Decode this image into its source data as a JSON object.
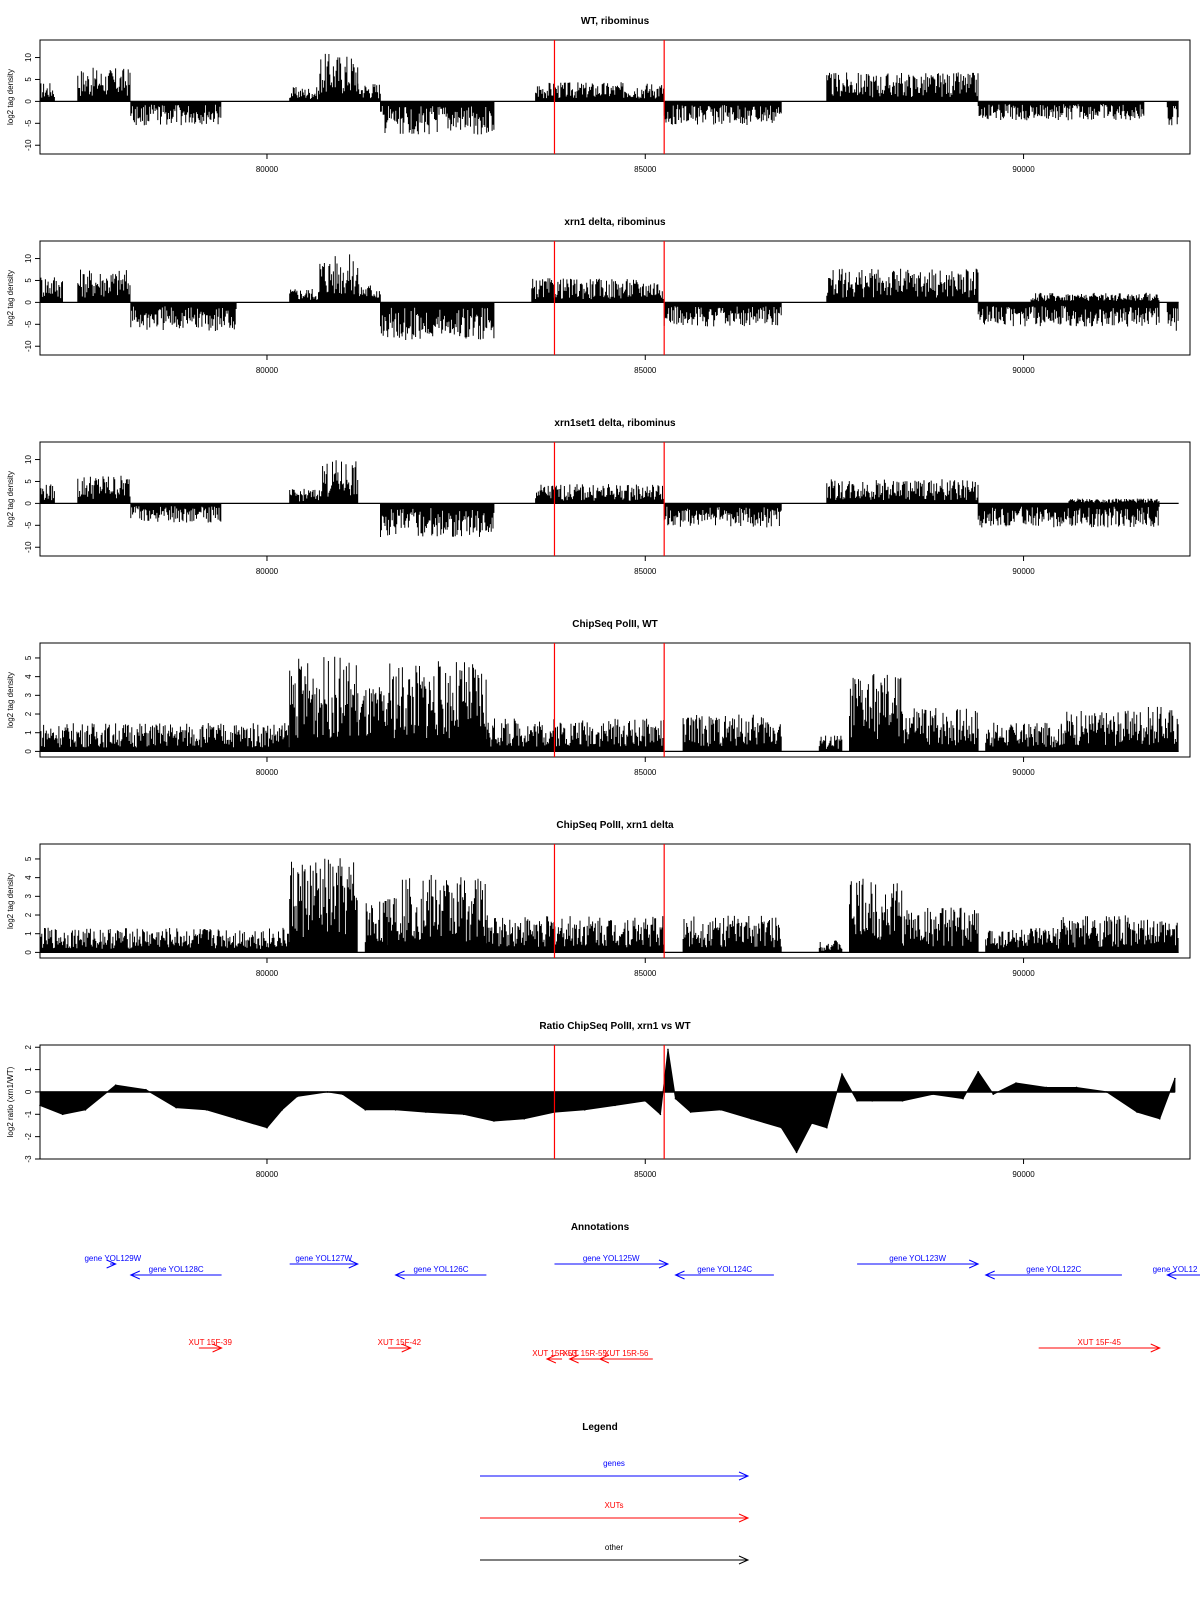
{
  "chart_data": [
    {
      "type": "area",
      "title": "WT, ribominus",
      "xlabel": "",
      "ylabel": "log2 tag density",
      "xlim": [
        77000,
        92200
      ],
      "ylim": [
        -12,
        14
      ],
      "x_ticks": [
        80000,
        85000,
        90000
      ],
      "y_ticks": [
        -10,
        -5,
        0,
        5,
        10
      ],
      "x_tick_labels": [
        "80000",
        "85000",
        "90000"
      ],
      "y_tick_labels": [
        "-10",
        "-5",
        "0",
        "5",
        "10"
      ],
      "grid": false,
      "markers": [
        83800,
        85250
      ],
      "series": [
        {
          "segments": [
            [
              77000,
              77200,
              4,
              0
            ],
            [
              77500,
              78200,
              7,
              0
            ],
            [
              78200,
              79400,
              0,
              -5
            ],
            [
              80300,
              80700,
              3,
              0
            ],
            [
              80700,
              81200,
              10,
              0
            ],
            [
              81200,
              81500,
              4,
              0
            ],
            [
              81500,
              83000,
              0,
              -7
            ],
            [
              83550,
              85250,
              4,
              0
            ],
            [
              85250,
              86800,
              0,
              -5
            ],
            [
              87400,
              89400,
              6,
              0
            ],
            [
              89400,
              91600,
              0,
              -4
            ],
            [
              91900,
              92050,
              0,
              -5
            ]
          ]
        }
      ]
    },
    {
      "type": "area",
      "title": "xrn1 delta, ribominus",
      "xlabel": "",
      "ylabel": "log2 tag density",
      "xlim": [
        77000,
        92200
      ],
      "ylim": [
        -12,
        14
      ],
      "x_ticks": [
        80000,
        85000,
        90000
      ],
      "y_ticks": [
        -10,
        -5,
        0,
        5,
        10
      ],
      "x_tick_labels": [
        "80000",
        "85000",
        "90000"
      ],
      "y_tick_labels": [
        "-10",
        "-5",
        "0",
        "5",
        "10"
      ],
      "grid": false,
      "markers": [
        83800,
        85250
      ],
      "series": [
        {
          "segments": [
            [
              77000,
              77300,
              6,
              0
            ],
            [
              77500,
              78200,
              7,
              0
            ],
            [
              78200,
              79600,
              0,
              -6
            ],
            [
              80300,
              80700,
              3,
              0
            ],
            [
              80700,
              81200,
              10,
              0
            ],
            [
              81200,
              81500,
              4,
              0
            ],
            [
              81500,
              83000,
              0,
              -8
            ],
            [
              83500,
              85250,
              5,
              0
            ],
            [
              85250,
              86800,
              0,
              -5
            ],
            [
              87400,
              89400,
              7,
              0
            ],
            [
              89400,
              91800,
              0,
              -5
            ],
            [
              90100,
              91800,
              2,
              0
            ],
            [
              91900,
              92050,
              0,
              -6
            ]
          ]
        }
      ]
    },
    {
      "type": "area",
      "title": "xrn1set1 delta, ribominus",
      "xlabel": "",
      "ylabel": "log2 tag density",
      "xlim": [
        77000,
        92200
      ],
      "ylim": [
        -12,
        14
      ],
      "x_ticks": [
        80000,
        85000,
        90000
      ],
      "y_ticks": [
        -10,
        -5,
        0,
        5,
        10
      ],
      "x_tick_labels": [
        "80000",
        "85000",
        "90000"
      ],
      "y_tick_labels": [
        "-10",
        "-5",
        "0",
        "5",
        "10"
      ],
      "grid": false,
      "markers": [
        83800,
        85250
      ],
      "series": [
        {
          "segments": [
            [
              77000,
              77200,
              4,
              0
            ],
            [
              77500,
              78200,
              6,
              0
            ],
            [
              78200,
              79400,
              0,
              -4
            ],
            [
              80300,
              80700,
              3,
              0
            ],
            [
              80700,
              81200,
              9,
              0
            ],
            [
              81500,
              83000,
              0,
              -7
            ],
            [
              83550,
              85250,
              4,
              0
            ],
            [
              85250,
              86800,
              0,
              -5
            ],
            [
              87400,
              89400,
              5,
              0
            ],
            [
              89400,
              91800,
              0,
              -5
            ],
            [
              90600,
              91800,
              1,
              0
            ]
          ]
        }
      ]
    },
    {
      "type": "area",
      "title": "ChipSeq PolII, WT",
      "xlabel": "",
      "ylabel": "log2 tag density",
      "xlim": [
        77000,
        92200
      ],
      "ylim": [
        -0.3,
        5.8
      ],
      "x_ticks": [
        80000,
        85000,
        90000
      ],
      "y_ticks": [
        0,
        1,
        2,
        3,
        4,
        5
      ],
      "x_tick_labels": [
        "80000",
        "85000",
        "90000"
      ],
      "y_tick_labels": [
        "0",
        "1",
        "2",
        "3",
        "4",
        "5"
      ],
      "grid": false,
      "markers": [
        83800,
        85250
      ],
      "series": [
        {
          "segments": [
            [
              77000,
              80300,
              1.4,
              0
            ],
            [
              80300,
              81200,
              4.6,
              0
            ],
            [
              81200,
              81600,
              3.2,
              0
            ],
            [
              81600,
              82900,
              4.4,
              0
            ],
            [
              82900,
              85250,
              1.6,
              0
            ],
            [
              85500,
              86800,
              1.8,
              0
            ],
            [
              87300,
              87600,
              0.8,
              0
            ],
            [
              87700,
              88400,
              3.8,
              0
            ],
            [
              88400,
              89400,
              2.2,
              0
            ],
            [
              89500,
              90500,
              1.4,
              0
            ],
            [
              90500,
              91400,
              2.0,
              0
            ],
            [
              91400,
              92050,
              2.2,
              0
            ]
          ]
        }
      ]
    },
    {
      "type": "area",
      "title": "ChipSeq PolII, xrn1 delta",
      "xlabel": "",
      "ylabel": "log2 tag density",
      "xlim": [
        77000,
        92200
      ],
      "ylim": [
        -0.3,
        5.8
      ],
      "x_ticks": [
        80000,
        85000,
        90000
      ],
      "y_ticks": [
        0,
        1,
        2,
        3,
        4,
        5
      ],
      "x_tick_labels": [
        "80000",
        "85000",
        "90000"
      ],
      "y_tick_labels": [
        "0",
        "1",
        "2",
        "3",
        "4",
        "5"
      ],
      "grid": false,
      "markers": [
        83800,
        85250
      ],
      "series": [
        {
          "segments": [
            [
              77000,
              80300,
              1.2,
              0
            ],
            [
              80300,
              81200,
              4.6,
              0
            ],
            [
              81300,
              81600,
              2.6,
              0
            ],
            [
              81600,
              82900,
              3.8,
              0
            ],
            [
              82900,
              85250,
              1.8,
              0
            ],
            [
              85500,
              86800,
              1.8,
              0
            ],
            [
              87300,
              87600,
              0.6,
              0
            ],
            [
              87700,
              88400,
              3.6,
              0
            ],
            [
              88400,
              89400,
              2.2,
              0
            ],
            [
              89500,
              90500,
              1.2,
              0
            ],
            [
              90500,
              91400,
              1.8,
              0
            ],
            [
              91400,
              92050,
              1.6,
              0
            ]
          ]
        }
      ]
    },
    {
      "type": "area",
      "title": "Ratio ChipSeq PolII, xrn1 vs WT",
      "xlabel": "",
      "ylabel": "log2 ratio (xrn1/WT)",
      "xlim": [
        77000,
        92200
      ],
      "ylim": [
        -3,
        2.1
      ],
      "x_ticks": [
        80000,
        85000,
        90000
      ],
      "y_ticks": [
        -3,
        -2,
        -1,
        0,
        1,
        2
      ],
      "x_tick_labels": [
        "80000",
        "85000",
        "90000"
      ],
      "y_tick_labels": [
        "-3",
        "-2",
        "-1",
        "0",
        "1",
        "2"
      ],
      "grid": false,
      "markers": [
        83800,
        85250
      ],
      "series": [
        {
          "x": [
            77000,
            77300,
            77600,
            78000,
            78400,
            78800,
            79200,
            79600,
            80000,
            80200,
            80400,
            80800,
            81000,
            81300,
            81700,
            82100,
            82600,
            83000,
            83400,
            83800,
            84200,
            84600,
            85000,
            85200,
            85300,
            85400,
            85600,
            86000,
            86400,
            86800,
            87000,
            87200,
            87400,
            87600,
            87800,
            88000,
            88400,
            88800,
            89200,
            89400,
            89600,
            89900,
            90300,
            90700,
            91100,
            91500,
            91800,
            92000
          ],
          "y": [
            -0.6,
            -1.0,
            -0.8,
            0.3,
            0.1,
            -0.7,
            -0.8,
            -1.2,
            -1.6,
            -0.8,
            -0.2,
            0.0,
            -0.1,
            -0.8,
            -0.8,
            -0.9,
            -1.0,
            -1.3,
            -1.2,
            -0.9,
            -0.8,
            -0.6,
            -0.4,
            -1.0,
            1.9,
            -0.3,
            -0.9,
            -0.8,
            -1.2,
            -1.6,
            -2.7,
            -1.4,
            -1.6,
            0.8,
            -0.4,
            -0.4,
            -0.4,
            -0.1,
            -0.3,
            0.9,
            -0.1,
            0.4,
            0.2,
            0.2,
            0.0,
            -0.9,
            -1.2,
            0.6
          ]
        }
      ]
    }
  ],
  "annotations": {
    "title": "Annotations",
    "genes": [
      {
        "label": "gene YOL129W",
        "dir": "right",
        "x1": 77700,
        "x2": 78000
      },
      {
        "label": "gene YOL128C",
        "dir": "left",
        "x1": 78200,
        "x2": 79400
      },
      {
        "label": "gene YOL127W",
        "dir": "right",
        "x1": 80300,
        "x2": 81200
      },
      {
        "label": "gene YOL126C",
        "dir": "left",
        "x1": 81700,
        "x2": 82900
      },
      {
        "label": "gene YOL125W",
        "dir": "right",
        "x1": 83800,
        "x2": 85300
      },
      {
        "label": "gene YOL124C",
        "dir": "left",
        "x1": 85400,
        "x2": 86700
      },
      {
        "label": "gene YOL123W",
        "dir": "right",
        "x1": 87800,
        "x2": 89400
      },
      {
        "label": "gene YOL122C",
        "dir": "left",
        "x1": 89500,
        "x2": 91300
      },
      {
        "label": "gene YOL12",
        "dir": "left",
        "x1": 91900,
        "x2": 92600
      }
    ],
    "xuts": [
      {
        "label": "XUT 15F-39",
        "dir": "right",
        "x1": 79100,
        "x2": 79400
      },
      {
        "label": "XUT 15F-42",
        "dir": "right",
        "x1": 81600,
        "x2": 81900
      },
      {
        "label": "XUT 15R-53",
        "dir": "left",
        "x1": 83700,
        "x2": 83900
      },
      {
        "label": "XUT 15R-55",
        "dir": "left",
        "x1": 84000,
        "x2": 84400
      },
      {
        "label": "XUT 15R-56",
        "dir": "left",
        "x1": 84400,
        "x2": 85100
      },
      {
        "label": "XUT 15F-45",
        "dir": "right",
        "x1": 90200,
        "x2": 91800
      }
    ]
  },
  "legend": {
    "title": "Legend",
    "items": [
      {
        "label": "genes",
        "color": "#0000ff"
      },
      {
        "label": "XUTs",
        "color": "#ff0000"
      },
      {
        "label": "other",
        "color": "#000000"
      }
    ]
  },
  "colors": {
    "data": "#000000",
    "marker": "#ff0000",
    "gene": "#0000ff",
    "xut": "#ff0000"
  }
}
